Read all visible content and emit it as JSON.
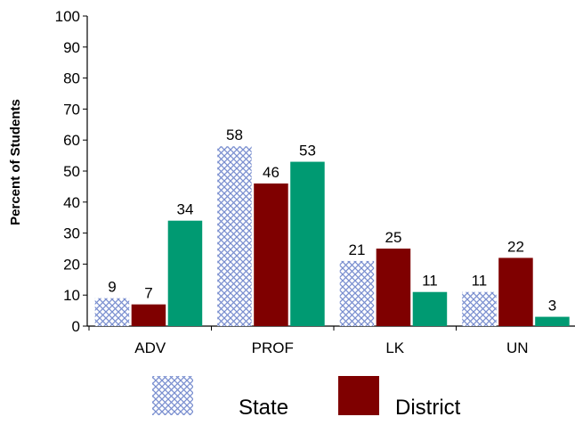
{
  "chart_data": {
    "type": "bar",
    "ylabel": "Percent of Students",
    "xlabel": "",
    "title": "",
    "ylim": [
      0,
      100
    ],
    "yticks": [
      0,
      10,
      20,
      30,
      40,
      50,
      60,
      70,
      80,
      90,
      100
    ],
    "categories": [
      "ADV",
      "PROF",
      "LK",
      "UN"
    ],
    "series": [
      {
        "name": "State",
        "values": [
          9,
          58,
          21,
          11
        ],
        "color": "#7a8fd0",
        "pattern": "crosshatch"
      },
      {
        "name": "District",
        "values": [
          7,
          46,
          25,
          22
        ],
        "color": "#7f0000",
        "pattern": "solid"
      },
      {
        "name": "",
        "values": [
          34,
          53,
          11,
          3
        ],
        "color": "#009a72",
        "pattern": "solid"
      }
    ],
    "legend": {
      "placement": "bottom",
      "entries": [
        "State",
        "District"
      ]
    },
    "grid": false
  }
}
